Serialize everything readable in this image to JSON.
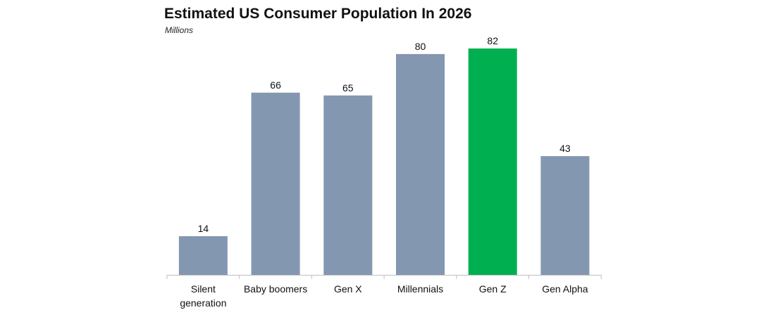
{
  "chart_data": {
    "type": "bar",
    "title": "Estimated US Consumer Population In 2026",
    "subtitle": "Millions",
    "categories": [
      "Silent generation",
      "Baby boomers",
      "Gen X",
      "Millennials",
      "Gen Z",
      "Gen Alpha"
    ],
    "category_lines": [
      [
        "Silent",
        "generation"
      ],
      [
        "Baby boomers"
      ],
      [
        "Gen X"
      ],
      [
        "Millennials"
      ],
      [
        "Gen Z"
      ],
      [
        "Gen Alpha"
      ]
    ],
    "values": [
      14,
      66,
      65,
      80,
      82,
      43
    ],
    "data_labels": [
      "14",
      "66",
      "65",
      "80",
      "82",
      "43"
    ],
    "highlight_category": "Gen Z",
    "ylim": [
      0,
      82
    ],
    "grid": false,
    "colors": {
      "bar": "#8497b0",
      "highlight": "#00b050",
      "axis": "#bfbfbf"
    }
  }
}
